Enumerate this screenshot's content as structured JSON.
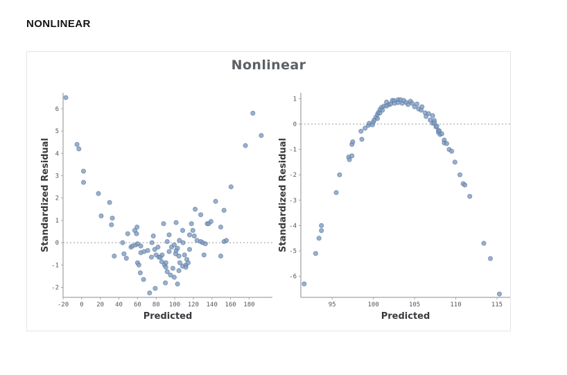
{
  "header": {
    "title": "NONLINEAR"
  },
  "panel": {
    "title": "Nonlinear"
  },
  "colors": {
    "point_fill": "#7d9abe",
    "point_stroke": "#53749f",
    "axis": "#a5a5a9",
    "zero_line": "#97979b",
    "tick_text": "#54545b",
    "axis_title_text": "#3a3a3e",
    "chart_title_text": "#5c6166",
    "header_text": "#141414",
    "panel_border": "#e4e4e8"
  },
  "chart_data": [
    {
      "type": "scatter",
      "title": "Nonlinear",
      "xlabel": "Predicted",
      "ylabel": "Standardized Residual",
      "xlim": [
        -20,
        205
      ],
      "ylim": [
        -2.45,
        6.71
      ],
      "xticks": [
        -20,
        0,
        20,
        40,
        60,
        80,
        100,
        120,
        140,
        160,
        180
      ],
      "yticks": [
        -2,
        -1,
        0,
        1,
        2,
        3,
        4,
        5,
        6
      ],
      "grid": false,
      "legend": false,
      "zero_line": true,
      "points": [
        [
          -17,
          6.5
        ],
        [
          -5,
          4.4
        ],
        [
          -3,
          4.2
        ],
        [
          2,
          3.2
        ],
        [
          2,
          2.7
        ],
        [
          18,
          2.2
        ],
        [
          30,
          1.8
        ],
        [
          21,
          1.2
        ],
        [
          33,
          1.1
        ],
        [
          32,
          0.8
        ],
        [
          35,
          -0.6
        ],
        [
          44,
          0.0
        ],
        [
          45.5,
          -0.5
        ],
        [
          48,
          -0.7
        ],
        [
          49.5,
          0.4
        ],
        [
          53,
          -0.2
        ],
        [
          54.5,
          -0.15
        ],
        [
          57,
          0.55
        ],
        [
          58,
          -0.1
        ],
        [
          59,
          0.4
        ],
        [
          59.5,
          0.7
        ],
        [
          60,
          -0.05
        ],
        [
          60,
          -0.9
        ],
        [
          61.5,
          -1.0
        ],
        [
          63,
          -1.35
        ],
        [
          63.5,
          -0.15
        ],
        [
          63.5,
          -0.45
        ],
        [
          66.5,
          -1.65
        ],
        [
          67,
          -0.4
        ],
        [
          71,
          -0.35
        ],
        [
          73,
          -2.25
        ],
        [
          75,
          -0.65
        ],
        [
          75.5,
          0.0
        ],
        [
          77,
          0.3
        ],
        [
          78.5,
          -0.3
        ],
        [
          79,
          -2.05
        ],
        [
          80,
          -0.55
        ],
        [
          82,
          -0.2
        ],
        [
          83,
          -0.65
        ],
        [
          84.5,
          -0.65
        ],
        [
          86,
          -0.85
        ],
        [
          86.5,
          -0.55
        ],
        [
          88,
          0.85
        ],
        [
          89,
          -1.0
        ],
        [
          90,
          -1.8
        ],
        [
          90.5,
          -1.1
        ],
        [
          90.5,
          -0.9
        ],
        [
          92,
          -1.3
        ],
        [
          92,
          0.05
        ],
        [
          94,
          -0.4
        ],
        [
          94,
          0.35
        ],
        [
          95.5,
          -1.45
        ],
        [
          96.5,
          -0.2
        ],
        [
          98,
          -1.15
        ],
        [
          99.5,
          -0.1
        ],
        [
          99.5,
          -1.55
        ],
        [
          101,
          -0.5
        ],
        [
          101.5,
          0.9
        ],
        [
          101.5,
          -0.35
        ],
        [
          103,
          -0.25
        ],
        [
          103,
          -1.85
        ],
        [
          104.5,
          -0.6
        ],
        [
          104.5,
          -1.25
        ],
        [
          105,
          0.1
        ],
        [
          105.5,
          -0.9
        ],
        [
          108.5,
          0.55
        ],
        [
          108.5,
          -1.05
        ],
        [
          109,
          0.0
        ],
        [
          110.5,
          -0.55
        ],
        [
          112,
          -1.0
        ],
        [
          112,
          -1.1
        ],
        [
          113,
          -0.75
        ],
        [
          114.5,
          -0.9
        ],
        [
          116,
          0.35
        ],
        [
          116,
          -0.3
        ],
        [
          118,
          0.85
        ],
        [
          119.5,
          0.55
        ],
        [
          121,
          0.3
        ],
        [
          122,
          1.5
        ],
        [
          124,
          0.1
        ],
        [
          128,
          1.25
        ],
        [
          128,
          0.05
        ],
        [
          130,
          0.0
        ],
        [
          131.5,
          -0.55
        ],
        [
          133,
          -0.05
        ],
        [
          135,
          0.85
        ],
        [
          136.5,
          0.85
        ],
        [
          139,
          0.95
        ],
        [
          144,
          1.85
        ],
        [
          149.5,
          0.7
        ],
        [
          149.5,
          -0.6
        ],
        [
          153,
          1.45
        ],
        [
          153,
          0.05
        ],
        [
          155.5,
          0.1
        ],
        [
          160.5,
          2.5
        ],
        [
          176,
          4.35
        ],
        [
          184,
          5.8
        ],
        [
          193,
          4.8
        ]
      ]
    },
    {
      "type": "scatter",
      "title": "Nonlinear",
      "xlabel": "Predicted",
      "ylabel": "Standardized Residual",
      "xlim": [
        91.2,
        116.6
      ],
      "ylim": [
        -6.83,
        1.23
      ],
      "xticks": [
        95,
        100,
        105,
        110,
        115
      ],
      "yticks": [
        -6,
        -5,
        -4,
        -3,
        -2,
        -1,
        0,
        1
      ],
      "grid": false,
      "legend": false,
      "zero_line": true,
      "points": [
        [
          91.6,
          -6.3
        ],
        [
          93,
          -5.1
        ],
        [
          93.4,
          -4.5
        ],
        [
          93.7,
          -4.2
        ],
        [
          93.7,
          -4.0
        ],
        [
          95.5,
          -2.7
        ],
        [
          95.9,
          -2.0
        ],
        [
          97,
          -1.3
        ],
        [
          97.1,
          -1.4
        ],
        [
          97.4,
          -1.25
        ],
        [
          97.4,
          -0.8
        ],
        [
          97.5,
          -0.7
        ],
        [
          98.5,
          -0.28
        ],
        [
          98.6,
          -0.6
        ],
        [
          99,
          -0.16
        ],
        [
          99.4,
          -0.05
        ],
        [
          99.5,
          0.03
        ],
        [
          99.9,
          -0.03
        ],
        [
          100,
          0.08
        ],
        [
          100.1,
          0.16
        ],
        [
          100.3,
          0.27
        ],
        [
          100.5,
          0.22
        ],
        [
          100.5,
          0.38
        ],
        [
          100.6,
          0.45
        ],
        [
          100.8,
          0.57
        ],
        [
          100.8,
          0.44
        ],
        [
          101,
          0.66
        ],
        [
          101.1,
          0.55
        ],
        [
          101.3,
          0.71
        ],
        [
          101.6,
          0.87
        ],
        [
          101.6,
          0.71
        ],
        [
          101.9,
          0.77
        ],
        [
          102.1,
          0.79
        ],
        [
          102.3,
          0.93
        ],
        [
          102.5,
          0.93
        ],
        [
          102.6,
          0.82
        ],
        [
          103,
          0.96
        ],
        [
          103,
          0.85
        ],
        [
          103.3,
          0.96
        ],
        [
          103.5,
          0.82
        ],
        [
          103.7,
          0.93
        ],
        [
          104,
          0.85
        ],
        [
          104.2,
          0.77
        ],
        [
          104.5,
          0.9
        ],
        [
          104.7,
          0.82
        ],
        [
          105,
          0.68
        ],
        [
          105.3,
          0.79
        ],
        [
          105.5,
          0.6
        ],
        [
          105.8,
          0.55
        ],
        [
          105.9,
          0.68
        ],
        [
          106.3,
          0.44
        ],
        [
          106.4,
          0.3
        ],
        [
          106.7,
          0.41
        ],
        [
          106.9,
          0.16
        ],
        [
          107.2,
          0.33
        ],
        [
          107.2,
          0.03
        ],
        [
          107.4,
          0.14
        ],
        [
          107.4,
          0.05
        ],
        [
          107.6,
          -0.11
        ],
        [
          107.7,
          -0.08
        ],
        [
          107.9,
          -0.25
        ],
        [
          107.9,
          -0.33
        ],
        [
          108,
          -0.27
        ],
        [
          108.1,
          -0.41
        ],
        [
          108.3,
          -0.38
        ],
        [
          108.6,
          -0.63
        ],
        [
          108.6,
          -0.74
        ],
        [
          108.9,
          -0.77
        ],
        [
          109.2,
          -1.0
        ],
        [
          109.5,
          -1.07
        ],
        [
          109.9,
          -1.5
        ],
        [
          110.5,
          -2.0
        ],
        [
          110.9,
          -2.35
        ],
        [
          111.1,
          -2.4
        ],
        [
          111.7,
          -2.85
        ],
        [
          113.4,
          -4.7
        ],
        [
          114.2,
          -5.3
        ],
        [
          115.3,
          -6.7
        ]
      ]
    }
  ]
}
